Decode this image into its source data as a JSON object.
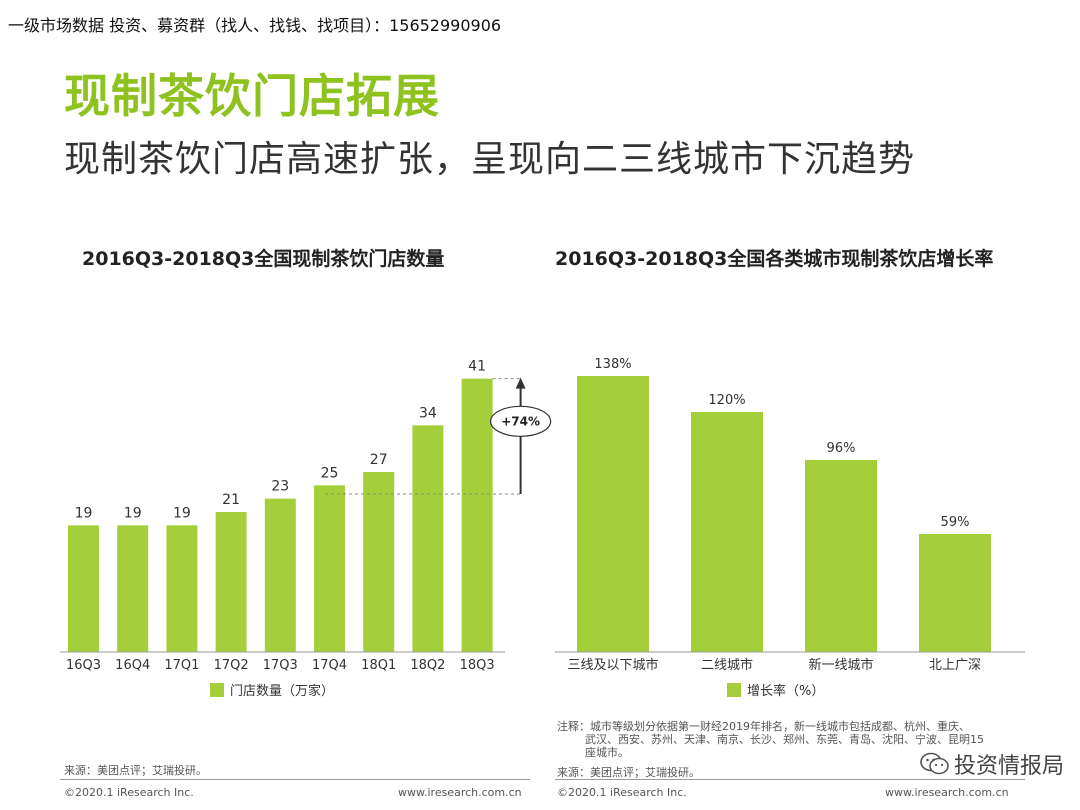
{
  "header": {
    "banner": "一级市场数据 投资、募资群（找人、找钱、找项目）：15652990906"
  },
  "slide": {
    "title": "现制茶饮门店拓展",
    "subtitle": "现制茶饮门店高速扩张，呈现向二三线城市下沉趋势"
  },
  "colors": {
    "accent": "#8dc21f",
    "bar": "#a5cf3a"
  },
  "chart_data": [
    {
      "type": "bar",
      "title": "2016Q3-2018Q3全国现制茶饮门店数量",
      "categories": [
        "16Q3",
        "16Q4",
        "17Q1",
        "17Q2",
        "17Q3",
        "17Q4",
        "18Q1",
        "18Q2",
        "18Q3"
      ],
      "values": [
        19,
        19,
        19,
        21,
        23,
        25,
        27,
        34,
        41
      ],
      "legend": "门店数量（万家）",
      "annotation": "+74%",
      "ylim": [
        0,
        45
      ]
    },
    {
      "type": "bar",
      "title": "2016Q3-2018Q3全国各类城市现制茶饮店增长率",
      "categories": [
        "三线及以下城市",
        "二线城市",
        "新一线城市",
        "北上广深"
      ],
      "values": [
        138,
        120,
        96,
        59
      ],
      "value_labels": [
        "138%",
        "120%",
        "96%",
        "59%"
      ],
      "legend": "增长率（%）",
      "ylim": [
        0,
        150
      ]
    }
  ],
  "left_footer": {
    "source": "来源：美团点评；艾瑞投研。",
    "copyright": "©2020.1 iResearch Inc.",
    "site": "www.iresearch.com.cn"
  },
  "right_footer": {
    "note_lines": [
      "注释：城市等级划分依据第一财经2019年排名，新一线城市包括成都、杭州、重庆、",
      "武汉、西安、苏州、天津、南京、长沙、郑州、东莞、青岛、沈阳、宁波、昆明15",
      "座城市。"
    ],
    "source": "来源：美团点评；艾瑞投研。",
    "copyright": "©2020.1 iResearch Inc.",
    "site": "www.iresearch.com.cn"
  },
  "watermark": {
    "text": "投资情报局",
    "icon": "wechat-icon"
  }
}
